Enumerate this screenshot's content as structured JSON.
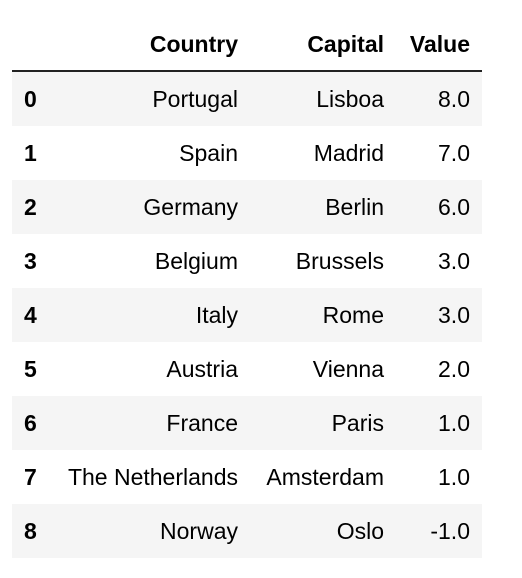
{
  "table": {
    "columns": {
      "index": "",
      "country": "Country",
      "capital": "Capital",
      "value": "Value"
    },
    "rows": [
      {
        "index": "0",
        "country": "Portugal",
        "capital": "Lisboa",
        "value": "8.0"
      },
      {
        "index": "1",
        "country": "Spain",
        "capital": "Madrid",
        "value": "7.0"
      },
      {
        "index": "2",
        "country": "Germany",
        "capital": "Berlin",
        "value": "6.0"
      },
      {
        "index": "3",
        "country": "Belgium",
        "capital": "Brussels",
        "value": "3.0"
      },
      {
        "index": "4",
        "country": "Italy",
        "capital": "Rome",
        "value": "3.0"
      },
      {
        "index": "5",
        "country": "Austria",
        "capital": "Vienna",
        "value": "2.0"
      },
      {
        "index": "6",
        "country": "France",
        "capital": "Paris",
        "value": "1.0"
      },
      {
        "index": "7",
        "country": "The Netherlands",
        "capital": "Amsterdam",
        "value": "1.0"
      },
      {
        "index": "8",
        "country": "Norway",
        "capital": "Oslo",
        "value": "-1.0"
      }
    ]
  }
}
